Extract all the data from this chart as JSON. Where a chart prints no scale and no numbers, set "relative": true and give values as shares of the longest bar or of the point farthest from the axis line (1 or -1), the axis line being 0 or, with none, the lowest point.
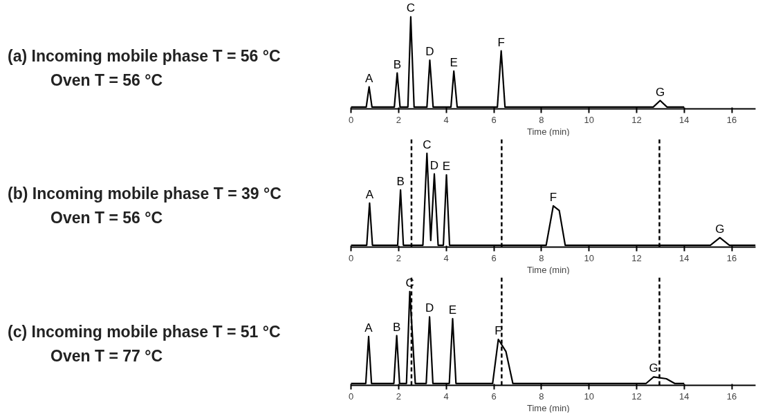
{
  "chart_data": [
    {
      "type": "line",
      "title": "(a) Incoming mobile phase T = 56 °C",
      "xlabel": "Time (min)",
      "relative": true,
      "xlim": [
        0,
        17
      ],
      "xticks": [
        0,
        2,
        4,
        6,
        8,
        10,
        12,
        14,
        16
      ],
      "grid": false,
      "tick_labels": "x",
      "series": [
        {
          "color": "#000000",
          "x": [
            0,
            0.64,
            0.76,
            0.88,
            1.82,
            1.94,
            2.06,
            2.39,
            2.51,
            2.65,
            3.19,
            3.31,
            3.45,
            4.2,
            4.32,
            4.46,
            6.15,
            6.31,
            6.47,
            12.7,
            12.99,
            13.28,
            14
          ],
          "values": [
            0.02,
            0.02,
            0.24,
            0.02,
            0.02,
            0.39,
            0.02,
            0.02,
            1,
            0.02,
            0.02,
            0.53,
            0.02,
            0.02,
            0.41,
            0.02,
            0.02,
            0.63,
            0.02,
            0.02,
            0.09,
            0.02,
            0.02
          ]
        }
      ],
      "annotations": [
        "Oven T = 56 °C",
        {
          "text": "A",
          "x": 0.76,
          "y": 0.24
        },
        {
          "text": "B",
          "x": 1.94,
          "y": 0.39
        },
        {
          "text": "C",
          "x": 2.51,
          "y": 1
        },
        {
          "text": "D",
          "x": 3.31,
          "y": 0.53
        },
        {
          "text": "E",
          "x": 4.32,
          "y": 0.41
        },
        {
          "text": "F",
          "x": 6.31,
          "y": 0.63
        },
        {
          "text": "G",
          "x": 12.99,
          "y": 0.09
        }
      ]
    },
    {
      "type": "line",
      "title": "(b) Incoming mobile phase T = 39 °C",
      "xlabel": "Time (min)",
      "relative": true,
      "xlim": [
        0,
        17
      ],
      "xticks": [
        0,
        2,
        4,
        6,
        8,
        10,
        12,
        14,
        16
      ],
      "grid": false,
      "tick_labels": "x",
      "series": [
        {
          "color": "#000000",
          "x": [
            0,
            0.66,
            0.78,
            0.9,
            1.96,
            2.08,
            2.2,
            3.02,
            3.19,
            3.35,
            3.5,
            3.66,
            3.88,
            4.01,
            4.14,
            8.2,
            8.5,
            8.75,
            9.0,
            15.1,
            15.5,
            15.9,
            17
          ],
          "values": [
            0.02,
            0.02,
            0.47,
            0.02,
            0.02,
            0.61,
            0.02,
            0.02,
            1,
            0.07,
            0.78,
            0.02,
            0.02,
            0.77,
            0.02,
            0.02,
            0.44,
            0.39,
            0.02,
            0.02,
            0.1,
            0.02,
            0.02
          ]
        }
      ],
      "annotations": [
        "Oven T = 56 °C",
        {
          "text": "A",
          "x": 0.78,
          "y": 0.47
        },
        {
          "text": "B",
          "x": 2.08,
          "y": 0.61
        },
        {
          "text": "C",
          "x": 3.19,
          "y": 1
        },
        {
          "text": "D",
          "x": 3.5,
          "y": 0.78
        },
        {
          "text": "E",
          "x": 4.01,
          "y": 0.77
        },
        {
          "text": "F",
          "x": 8.5,
          "y": 0.44
        },
        {
          "text": "G",
          "x": 15.5,
          "y": 0.1
        }
      ],
      "ref_lines": [
        {
          "axis": "x",
          "value": 2.54,
          "color": "#000000",
          "line_style": "dashed"
        },
        {
          "axis": "x",
          "value": 6.33,
          "color": "#000000",
          "line_style": "dashed"
        },
        {
          "axis": "x",
          "value": 12.96,
          "color": "#000000",
          "line_style": "dashed"
        }
      ]
    },
    {
      "type": "line",
      "title": "(c) Incoming mobile phase T = 51 °C",
      "xlabel": "Time (min)",
      "relative": true,
      "xlim": [
        0,
        17
      ],
      "xticks": [
        0,
        2,
        4,
        6,
        8,
        10,
        12,
        14,
        16
      ],
      "grid": false,
      "tick_labels": "x",
      "series": [
        {
          "color": "#000000",
          "x": [
            0,
            0.62,
            0.74,
            0.86,
            1.8,
            1.92,
            2.04,
            2.33,
            2.47,
            2.7,
            3.16,
            3.3,
            3.44,
            4.13,
            4.27,
            4.41,
            5.95,
            6.19,
            6.51,
            6.8,
            12.4,
            12.72,
            13.25,
            13.6,
            14
          ],
          "values": [
            0.02,
            0.02,
            0.52,
            0.02,
            0.02,
            0.53,
            0.02,
            0.02,
            1,
            0.02,
            0.02,
            0.73,
            0.02,
            0.02,
            0.71,
            0.02,
            0.02,
            0.49,
            0.36,
            0.02,
            0.02,
            0.09,
            0.07,
            0.02,
            0.02
          ]
        }
      ],
      "annotations": [
        "Oven T = 77 °C",
        {
          "text": "A",
          "x": 0.74,
          "y": 0.52
        },
        {
          "text": "B",
          "x": 1.92,
          "y": 0.53
        },
        {
          "text": "C",
          "x": 2.47,
          "y": 1
        },
        {
          "text": "D",
          "x": 3.3,
          "y": 0.73
        },
        {
          "text": "E",
          "x": 4.27,
          "y": 0.71
        },
        {
          "text": "F",
          "x": 6.19,
          "y": 0.49
        },
        {
          "text": "G",
          "x": 12.72,
          "y": 0.09
        }
      ],
      "ref_lines": [
        {
          "axis": "x",
          "value": 2.54,
          "color": "#000000",
          "line_style": "dashed"
        },
        {
          "axis": "x",
          "value": 6.33,
          "color": "#000000",
          "line_style": "dashed"
        },
        {
          "axis": "x",
          "value": 12.96,
          "color": "#000000",
          "line_style": "dashed"
        }
      ]
    }
  ]
}
